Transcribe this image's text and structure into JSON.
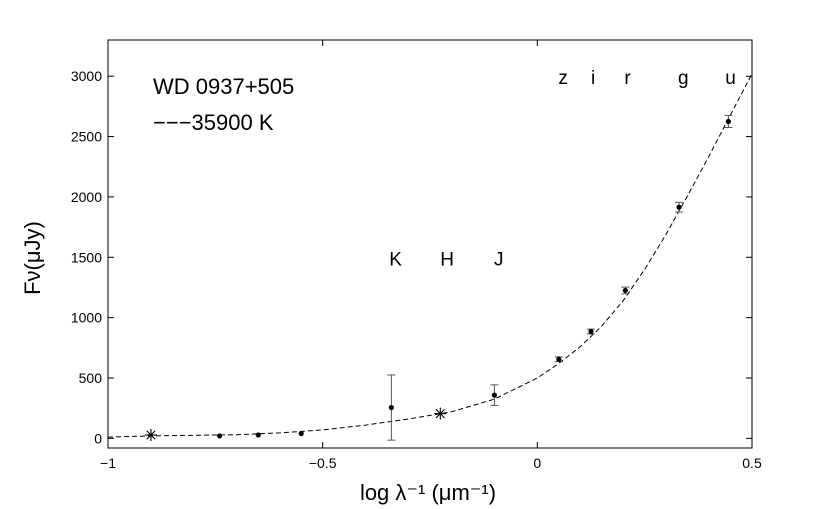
{
  "chart_data": {
    "type": "scatter",
    "title": "",
    "xlabel": "log λ⁻¹ (μm⁻¹)",
    "ylabel": "Fν(μJy)",
    "xlim": [
      -1,
      0.5
    ],
    "ylim": [
      -80,
      3300
    ],
    "x_ticks": [
      -1,
      -0.5,
      0,
      0.5
    ],
    "x_tick_labels": [
      "−1",
      "−0.5",
      "0",
      "0.5"
    ],
    "y_ticks": [
      0,
      500,
      1000,
      1500,
      2000,
      2500,
      3000
    ],
    "y_tick_labels": [
      "0",
      "500",
      "1000",
      "1500",
      "2000",
      "2500",
      "3000"
    ],
    "grid": false,
    "annotations": {
      "object": "WD 0937+505",
      "model": "−−−35900  K"
    },
    "band_labels": [
      {
        "text": "z",
        "x": 0.06,
        "y": 3000
      },
      {
        "text": "i",
        "x": 0.13,
        "y": 3000
      },
      {
        "text": "r",
        "x": 0.21,
        "y": 3000
      },
      {
        "text": "g",
        "x": 0.34,
        "y": 3000
      },
      {
        "text": "u",
        "x": 0.45,
        "y": 3000
      },
      {
        "text": "K",
        "x": -0.33,
        "y": 1500
      },
      {
        "text": "H",
        "x": -0.21,
        "y": 1500
      },
      {
        "text": "J",
        "x": -0.09,
        "y": 1500
      }
    ],
    "series": [
      {
        "kind": "points",
        "points": [
          {
            "x": -0.74,
            "y": 20,
            "err": 0
          },
          {
            "x": -0.65,
            "y": 28,
            "err": 0
          },
          {
            "x": -0.55,
            "y": 40,
            "err": 0
          },
          {
            "x": -0.34,
            "y": 255,
            "err": 270
          },
          {
            "x": -0.1,
            "y": 358,
            "err": 85
          },
          {
            "x": 0.05,
            "y": 655,
            "err": 20
          },
          {
            "x": 0.125,
            "y": 885,
            "err": 20
          },
          {
            "x": 0.205,
            "y": 1225,
            "err": 28
          },
          {
            "x": 0.33,
            "y": 1915,
            "err": 40
          },
          {
            "x": 0.445,
            "y": 2625,
            "err": 50
          }
        ]
      },
      {
        "kind": "asterisks",
        "points": [
          {
            "x": -0.9,
            "y": 28
          },
          {
            "x": -0.226,
            "y": 205
          }
        ]
      },
      {
        "kind": "model-curve",
        "style": "dashed",
        "x": [
          -1.0,
          -0.9,
          -0.8,
          -0.7,
          -0.6,
          -0.5,
          -0.4,
          -0.3,
          -0.2,
          -0.1,
          0.0,
          0.05,
          0.1,
          0.15,
          0.2,
          0.25,
          0.3,
          0.35,
          0.4,
          0.45,
          0.5
        ],
        "y": [
          10,
          20,
          25,
          30,
          45,
          70,
          110,
          160,
          220,
          325,
          500,
          620,
          760,
          930,
          1140,
          1400,
          1690,
          2010,
          2340,
          2680,
          3020
        ]
      }
    ]
  }
}
